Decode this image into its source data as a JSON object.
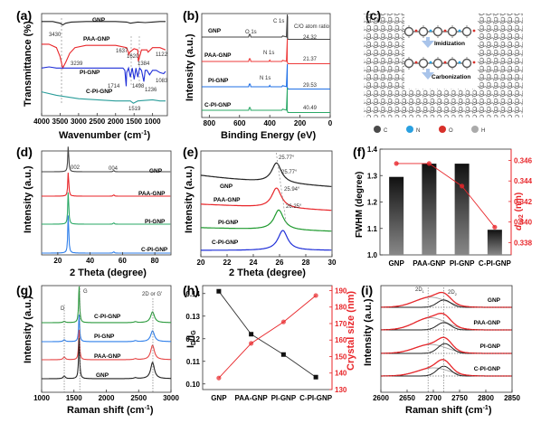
{
  "figure": {
    "colors": {
      "black": "#222222",
      "red": "#e8262a",
      "blue": "#1f2fd8",
      "green": "#1f9a2f",
      "teal": "#2a9d9a",
      "xps_red": "#ee3b3b",
      "xps_blue": "#1f6fe6",
      "xps_green": "#2aa866",
      "grey": "#999999",
      "raman_blue": "#2f7fea",
      "raman_red": "#e64646",
      "raman_green": "#2a9a3c"
    }
  },
  "chart_data": [
    {
      "panel": "(a)",
      "type": "line",
      "xlabel": "Wavenumber (cm⁻¹)",
      "ylabel": "Transmittance (%)",
      "xlim": [
        4000,
        600
      ],
      "xticks": [
        4000,
        3500,
        3000,
        2500,
        2000,
        1500,
        1000
      ],
      "series": [
        {
          "name": "GNP",
          "color": "#222222",
          "x": [
            4000,
            3700,
            3500,
            3430,
            3350,
            3200,
            2800,
            2000,
            1700,
            1600,
            1400,
            1200,
            1000,
            800,
            650
          ],
          "y": [
            0.93,
            0.93,
            0.915,
            0.9,
            0.915,
            0.925,
            0.93,
            0.93,
            0.925,
            0.915,
            0.925,
            0.92,
            0.925,
            0.93,
            0.93
          ]
        },
        {
          "name": "PAA-GNP",
          "color": "#e8262a",
          "x": [
            4000,
            3800,
            3600,
            3500,
            3430,
            3350,
            3239,
            3100,
            2800,
            2000,
            1700,
            1637,
            1620,
            1500,
            1400,
            1384,
            1300,
            1150,
            1122,
            1000,
            800,
            650
          ],
          "y": [
            0.73,
            0.73,
            0.7,
            0.62,
            0.52,
            0.57,
            0.65,
            0.7,
            0.72,
            0.72,
            0.7,
            0.64,
            0.66,
            0.69,
            0.68,
            0.58,
            0.68,
            0.68,
            0.66,
            0.7,
            0.7,
            0.68
          ]
        },
        {
          "name": "PI-GNP",
          "color": "#1f2fd8",
          "x": [
            4000,
            3800,
            3600,
            3000,
            2000,
            1800,
            1750,
            1714,
            1700,
            1650,
            1600,
            1550,
            1498,
            1450,
            1400,
            1350,
            1300,
            1236,
            1200,
            1150,
            1083,
            1000,
            900,
            800,
            700,
            650
          ],
          "y": [
            0.52,
            0.53,
            0.52,
            0.52,
            0.52,
            0.52,
            0.5,
            0.36,
            0.48,
            0.52,
            0.44,
            0.52,
            0.42,
            0.52,
            0.44,
            0.52,
            0.5,
            0.4,
            0.5,
            0.5,
            0.46,
            0.5,
            0.5,
            0.48,
            0.47,
            0.49
          ]
        },
        {
          "name": "C-PI-GNP",
          "color": "#2a9d9a",
          "x": [
            4000,
            3600,
            3000,
            2500,
            2000,
            1600,
            1519,
            1400,
            1000,
            800,
            650
          ],
          "y": [
            0.31,
            0.28,
            0.25,
            0.24,
            0.23,
            0.23,
            0.21,
            0.23,
            0.24,
            0.23,
            0.23
          ]
        }
      ],
      "annotations": [
        "3430",
        "3239",
        "1637",
        "1620",
        "1384",
        "1122",
        "1714",
        "1498",
        "1236",
        "1083",
        "1519"
      ]
    },
    {
      "panel": "(b)",
      "type": "line",
      "xlabel": "Binding Energy (eV)",
      "ylabel": "Intensity (a.u.)",
      "xlim": [
        850,
        0
      ],
      "xticks": [
        800,
        600,
        400,
        200,
        0
      ],
      "series": [
        {
          "name": "GNP",
          "color": "#444444",
          "co_ratio": "24.32"
        },
        {
          "name": "PAA-GNP",
          "color": "#ee3b3b",
          "co_ratio": "21.37"
        },
        {
          "name": "PI-GNP",
          "color": "#1f6fe6",
          "co_ratio": "29.53"
        },
        {
          "name": "C-PI-GNP",
          "color": "#2aa866",
          "co_ratio": "40.49"
        }
      ],
      "peak_labels": [
        "C 1s",
        "O 1s",
        "N 1s",
        "N 1s"
      ],
      "table_header": "C/O atom ratio"
    },
    {
      "panel": "(c)",
      "type": "diagram",
      "steps": [
        "Imidization",
        "Carbonization"
      ],
      "legend": [
        {
          "label": "C",
          "color": "#4a4a4a"
        },
        {
          "label": "N",
          "color": "#2aa0e0"
        },
        {
          "label": "O",
          "color": "#d8302a"
        },
        {
          "label": "H",
          "color": "#aaaaaa"
        }
      ]
    },
    {
      "panel": "(d)",
      "type": "line",
      "xlabel": "2 Theta (degree)",
      "ylabel": "Intensity (a.u.)",
      "xlim": [
        10,
        90
      ],
      "xticks": [
        20,
        40,
        60,
        80
      ],
      "peaks": [
        {
          "label": "002",
          "x": 26.5
        },
        {
          "label": "004",
          "x": 54.6
        }
      ],
      "series": [
        {
          "name": "GNP",
          "color": "#444444"
        },
        {
          "name": "PAA-GNP",
          "color": "#e8262a"
        },
        {
          "name": "PI-GNP",
          "color": "#2aa866"
        },
        {
          "name": "C-PI-GNP",
          "color": "#2f7fea"
        }
      ]
    },
    {
      "panel": "(e)",
      "type": "line",
      "xlabel": "2 Theta (degree)",
      "ylabel": "Intensity (a.u.)",
      "xlim": [
        20,
        30
      ],
      "xticks": [
        20,
        22,
        24,
        26,
        28,
        30
      ],
      "series": [
        {
          "name": "GNP",
          "color": "#222222",
          "peak": 25.77,
          "peak_label": "25.77°"
        },
        {
          "name": "PAA-GNP",
          "color": "#e8262a",
          "peak": 25.77,
          "peak_label": "25.77°"
        },
        {
          "name": "PI-GNP",
          "color": "#1f9a2f",
          "peak": 25.94,
          "peak_label": "25.94°"
        },
        {
          "name": "C-PI-GNP",
          "color": "#1f2fd8",
          "peak": 26.25,
          "peak_label": "26.25°"
        }
      ]
    },
    {
      "panel": "(f)",
      "type": "bar",
      "categories": [
        "GNP",
        "PAA-GNP",
        "PI-GNP",
        "C-PI-GNP"
      ],
      "series": [
        {
          "name": "FWHM",
          "axis": "left",
          "values": [
            1.295,
            1.345,
            1.345,
            1.095
          ]
        },
        {
          "name": "d002",
          "axis": "right",
          "type": "line",
          "color": "#e8262a",
          "values": [
            0.3457,
            0.3457,
            0.3435,
            0.3395
          ]
        }
      ],
      "ylabel": "FWHM (degree)",
      "ylabel_right": "d002 (nm)",
      "ylim": [
        1.0,
        1.4
      ],
      "yticks": [
        1.0,
        1.1,
        1.2,
        1.3,
        1.4
      ],
      "ylim_right": [
        0.3368,
        0.3471
      ],
      "yticks_right": [
        0.338,
        0.34,
        0.342,
        0.344,
        0.346
      ]
    },
    {
      "panel": "(g)",
      "type": "line",
      "xlabel": "Raman shift (cm⁻¹)",
      "ylabel": "Intensity (a.u.)",
      "xlim": [
        1000,
        3000
      ],
      "xticks": [
        1000,
        1500,
        2000,
        2500,
        3000
      ],
      "band_labels": [
        {
          "label": "D",
          "x": 1350
        },
        {
          "label": "G",
          "x": 1580
        },
        {
          "label": "2D or G'",
          "x": 2720
        }
      ],
      "series": [
        {
          "name": "C-PI-GNP",
          "color": "#2a9a3c"
        },
        {
          "name": "PI-GNP",
          "color": "#2f7fea"
        },
        {
          "name": "PAA-GNP",
          "color": "#e64646"
        },
        {
          "name": "GNP",
          "color": "#222222"
        }
      ]
    },
    {
      "panel": "(h)",
      "type": "line",
      "categories": [
        "GNP",
        "PAA-GNP",
        "PI-GNP",
        "C-PI-GNP"
      ],
      "series": [
        {
          "name": "ID/IG",
          "axis": "left",
          "color": "#222222",
          "values": [
            0.141,
            0.122,
            0.113,
            0.103
          ]
        },
        {
          "name": "Crystal size",
          "axis": "right",
          "color": "#e8262a",
          "values": [
            137,
            158,
            171,
            187
          ]
        }
      ],
      "ylabel": "ID/IG",
      "ylabel_right": "Crystal size (nm)",
      "ylim": [
        0.0975,
        0.1435
      ],
      "yticks": [
        0.1,
        0.11,
        0.12,
        0.13,
        0.14
      ],
      "ylim_right": [
        130,
        193
      ],
      "yticks_right": [
        130,
        140,
        150,
        160,
        170,
        180,
        190
      ]
    },
    {
      "panel": "(i)",
      "type": "line",
      "xlabel": "Raman shift (cm⁻¹)",
      "ylabel": "Intensity (a.u.)",
      "xlim": [
        2600,
        2850
      ],
      "xticks": [
        2600,
        2650,
        2700,
        2750,
        2800,
        2850
      ],
      "component_labels": [
        "2D1",
        "2D2"
      ],
      "component_positions": [
        2690,
        2720
      ],
      "series": [
        {
          "name": "GNP",
          "fit_color": "#e8262a",
          "w1": 0.62,
          "w2": 0.45,
          "c1": 2695,
          "c2": 2720
        },
        {
          "name": "PAA-GNP",
          "fit_color": "#e8262a",
          "w1": 0.75,
          "w2": 0.45,
          "c1": 2695,
          "c2": 2720
        },
        {
          "name": "PI-GNP",
          "fit_color": "#e8262a",
          "w1": 0.55,
          "w2": 0.6,
          "c1": 2695,
          "c2": 2722
        },
        {
          "name": "C-PI-GNP",
          "fit_color": "#e8262a",
          "w1": 0.5,
          "w2": 0.6,
          "c1": 2700,
          "c2": 2720
        }
      ]
    }
  ],
  "text": {
    "a": {
      "label": "(a)",
      "ylabel": "Transmittance (%)",
      "xlabel": "Wavenumber (cm",
      "xlabel_sup": "-1",
      "xlabel_end": ")",
      "s": [
        "GNP",
        "PAA-GNP",
        "PI-GNP",
        "C-PI-GNP"
      ],
      "xt": [
        "4000",
        "3500",
        "3000",
        "2500",
        "2000",
        "1500",
        "1000"
      ]
    },
    "b": {
      "label": "(b)",
      "ylabel": "Intensity (a.u.)",
      "xlabel": "Binding Energy (eV)",
      "s": [
        "GNP",
        "PAA-GNP",
        "PI-GNP",
        "C-PI-GNP"
      ],
      "xt": [
        "800",
        "600",
        "400",
        "200",
        "0"
      ],
      "c1s": "C 1s",
      "o1s": "O 1s",
      "n1s": "N 1s",
      "hdr": "C/O atom ratio",
      "r": [
        "24.32",
        "21.37",
        "29.53",
        "40.49"
      ]
    },
    "c": {
      "label": "(c)",
      "step1": "Imidization",
      "step2": "Carbonization",
      "leg": [
        "C",
        "N",
        "O",
        "H"
      ]
    },
    "d": {
      "label": "(d)",
      "ylabel": "Intensity (a.u.)",
      "xlabel": "2 Theta (degree)",
      "s": [
        "GNP",
        "PAA-GNP",
        "PI-GNP",
        "C-PI-GNP"
      ],
      "xt": [
        "20",
        "40",
        "60",
        "80"
      ],
      "p1": "002",
      "p2": "004"
    },
    "e": {
      "label": "(e)",
      "ylabel": "Intensity (a.u.)",
      "xlabel": "2 Theta (degree)",
      "s": [
        "GNP",
        "PAA-GNP",
        "PI-GNP",
        "C-PI-GNP"
      ],
      "xt": [
        "20",
        "22",
        "24",
        "26",
        "28",
        "30"
      ],
      "pk": [
        "25.77°",
        "25.77°",
        "25.94°",
        "26.25°"
      ]
    },
    "f": {
      "label": "(f)",
      "ylabel": "FWHM (degree)",
      "yr_a": "d",
      "yr_b": "002",
      "yr_c": " (nm)",
      "cats": [
        "GNP",
        "PAA-GNP",
        "PI-GNP",
        "C-PI-GNP"
      ],
      "yt": [
        "1.0",
        "1.1",
        "1.2",
        "1.3",
        "1.4"
      ],
      "yrt": [
        "0.338",
        "0.340",
        "0.342",
        "0.344",
        "0.346"
      ]
    },
    "g": {
      "label": "(g)",
      "ylabel": "Intensity (a.u.)",
      "xlabel": "Raman shift (cm",
      "xlabel_sup": "-1",
      "xlabel_end": ")",
      "s": [
        "C-PI-GNP",
        "PI-GNP",
        "PAA-GNP",
        "GNP"
      ],
      "xt": [
        "1000",
        "1500",
        "2000",
        "2500",
        "3000"
      ],
      "D": "D",
      "G": "G",
      "G2": "2D or G'"
    },
    "h": {
      "label": "(h)",
      "ylabel_a": "I",
      "ylabel_b": "D",
      "ylabel_c": "/I",
      "ylabel_d": "G",
      "yr": "Crystal size (nm)",
      "cats": [
        "GNP",
        "PAA-GNP",
        "PI-GNP",
        "C-PI-GNP"
      ],
      "yt": [
        "0.10",
        "0.11",
        "0.12",
        "0.13",
        "0.14"
      ],
      "yrt": [
        "130",
        "140",
        "150",
        "160",
        "170",
        "180",
        "190"
      ]
    },
    "i": {
      "label": "(i)",
      "ylabel": "Intensity (a.u.)",
      "xlabel": "Raman shift (cm",
      "xlabel_sup": "-1",
      "xlabel_end": ")",
      "s": [
        "GNP",
        "PAA-GNP",
        "PI-GNP",
        "C-PI-GNP"
      ],
      "xt": [
        "2600",
        "2650",
        "2700",
        "2750",
        "2800",
        "2850"
      ],
      "c1": "2D",
      "c1s": "1",
      "c2": "2D",
      "c2s": "2"
    }
  }
}
